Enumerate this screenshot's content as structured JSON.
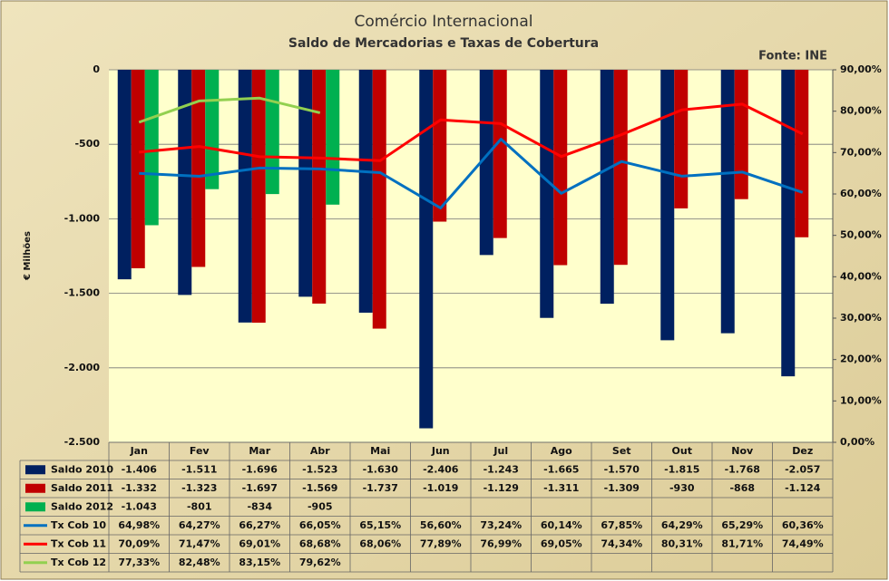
{
  "chart_data": {
    "type": "bar",
    "title": "Comércio Internacional",
    "subtitle": "Saldo de Mercadorias e Taxas de Cobertura",
    "source": "Fonte: INE",
    "ylabel": "€ Milhões",
    "categories": [
      "Jan",
      "Fev",
      "Mar",
      "Abr",
      "Mai",
      "Jun",
      "Jul",
      "Ago",
      "Set",
      "Out",
      "Nov",
      "Dez"
    ],
    "ylim": [
      -2500,
      0
    ],
    "yticks": [
      {
        "value": -2500,
        "label": "-2.500"
      },
      {
        "value": -2000,
        "label": "-2.000"
      },
      {
        "value": -1500,
        "label": "-1.500"
      },
      {
        "value": -1000,
        "label": "-1.000"
      },
      -500,
      0
    ],
    "y2lim": [
      0,
      90
    ],
    "y2ticks": [
      {
        "value": 0,
        "label": "0,00%"
      },
      {
        "value": 10,
        "label": "10,00%"
      },
      {
        "value": 20,
        "label": "20,00%"
      },
      {
        "value": 30,
        "label": "30,00%"
      },
      {
        "value": 40,
        "label": "40,00%"
      },
      {
        "value": 50,
        "label": "50,00%"
      },
      {
        "value": 60,
        "label": "60,00%"
      },
      {
        "value": 70,
        "label": "70,00%"
      },
      {
        "value": 80,
        "label": "80,00%"
      },
      {
        "value": 90,
        "label": "90,00%"
      }
    ],
    "grid": true,
    "series": [
      {
        "name": "Saldo 2010",
        "type": "bar",
        "color": "#002060",
        "values": [
          -1406,
          -1511,
          -1696,
          -1523,
          -1630,
          -2406,
          -1243,
          -1665,
          -1570,
          -1815,
          -1768,
          -2057
        ],
        "value_labels": [
          "-1.406",
          "-1.511",
          "-1.696",
          "-1.523",
          "-1.630",
          "-2.406",
          "-1.243",
          "-1.665",
          "-1.570",
          "-1.815",
          "-1.768",
          "-2.057"
        ]
      },
      {
        "name": "Saldo 2011",
        "type": "bar",
        "color": "#c00000",
        "values": [
          -1332,
          -1323,
          -1697,
          -1569,
          -1737,
          -1019,
          -1129,
          -1311,
          -1309,
          -930,
          -868,
          -1124
        ],
        "value_labels": [
          "-1.332",
          "-1.323",
          "-1.697",
          "-1.569",
          "-1.737",
          "-1.019",
          "-1.129",
          "-1.311",
          "-1.309",
          "-930",
          "-868",
          "-1.124"
        ]
      },
      {
        "name": "Saldo 2012",
        "type": "bar",
        "color": "#00b050",
        "values": [
          -1043,
          -801,
          -834,
          -905,
          null,
          null,
          null,
          null,
          null,
          null,
          null,
          null
        ],
        "value_labels": [
          "-1.043",
          "-801",
          "-834",
          "-905",
          null,
          null,
          null,
          null,
          null,
          null,
          null,
          null
        ]
      },
      {
        "name": "Tx Cob 10",
        "type": "line",
        "axis": "y2",
        "color": "#0070c0",
        "values": [
          64.98,
          64.27,
          66.27,
          66.05,
          65.15,
          56.6,
          73.24,
          60.14,
          67.85,
          64.29,
          65.29,
          60.36
        ],
        "value_labels": [
          "64,98%",
          "64,27%",
          "66,27%",
          "66,05%",
          "65,15%",
          "56,60%",
          "73,24%",
          "60,14%",
          "67,85%",
          "64,29%",
          "65,29%",
          "60,36%"
        ]
      },
      {
        "name": "Tx Cob 11",
        "type": "line",
        "axis": "y2",
        "color": "#ff0000",
        "values": [
          70.09,
          71.47,
          69.01,
          68.68,
          68.06,
          77.89,
          76.99,
          69.05,
          74.34,
          80.31,
          81.71,
          74.49
        ],
        "value_labels": [
          "70,09%",
          "71,47%",
          "69,01%",
          "68,68%",
          "68,06%",
          "77,89%",
          "76,99%",
          "69,05%",
          "74,34%",
          "80,31%",
          "81,71%",
          "74,49%"
        ]
      },
      {
        "name": "Tx Cob 12",
        "type": "line",
        "axis": "y2",
        "color": "#92d050",
        "values": [
          77.33,
          82.48,
          83.15,
          79.62,
          null,
          null,
          null,
          null,
          null,
          null,
          null,
          null
        ],
        "value_labels": [
          "77,33%",
          "82,48%",
          "83,15%",
          "79,62%",
          null,
          null,
          null,
          null,
          null,
          null,
          null,
          null
        ]
      }
    ]
  }
}
